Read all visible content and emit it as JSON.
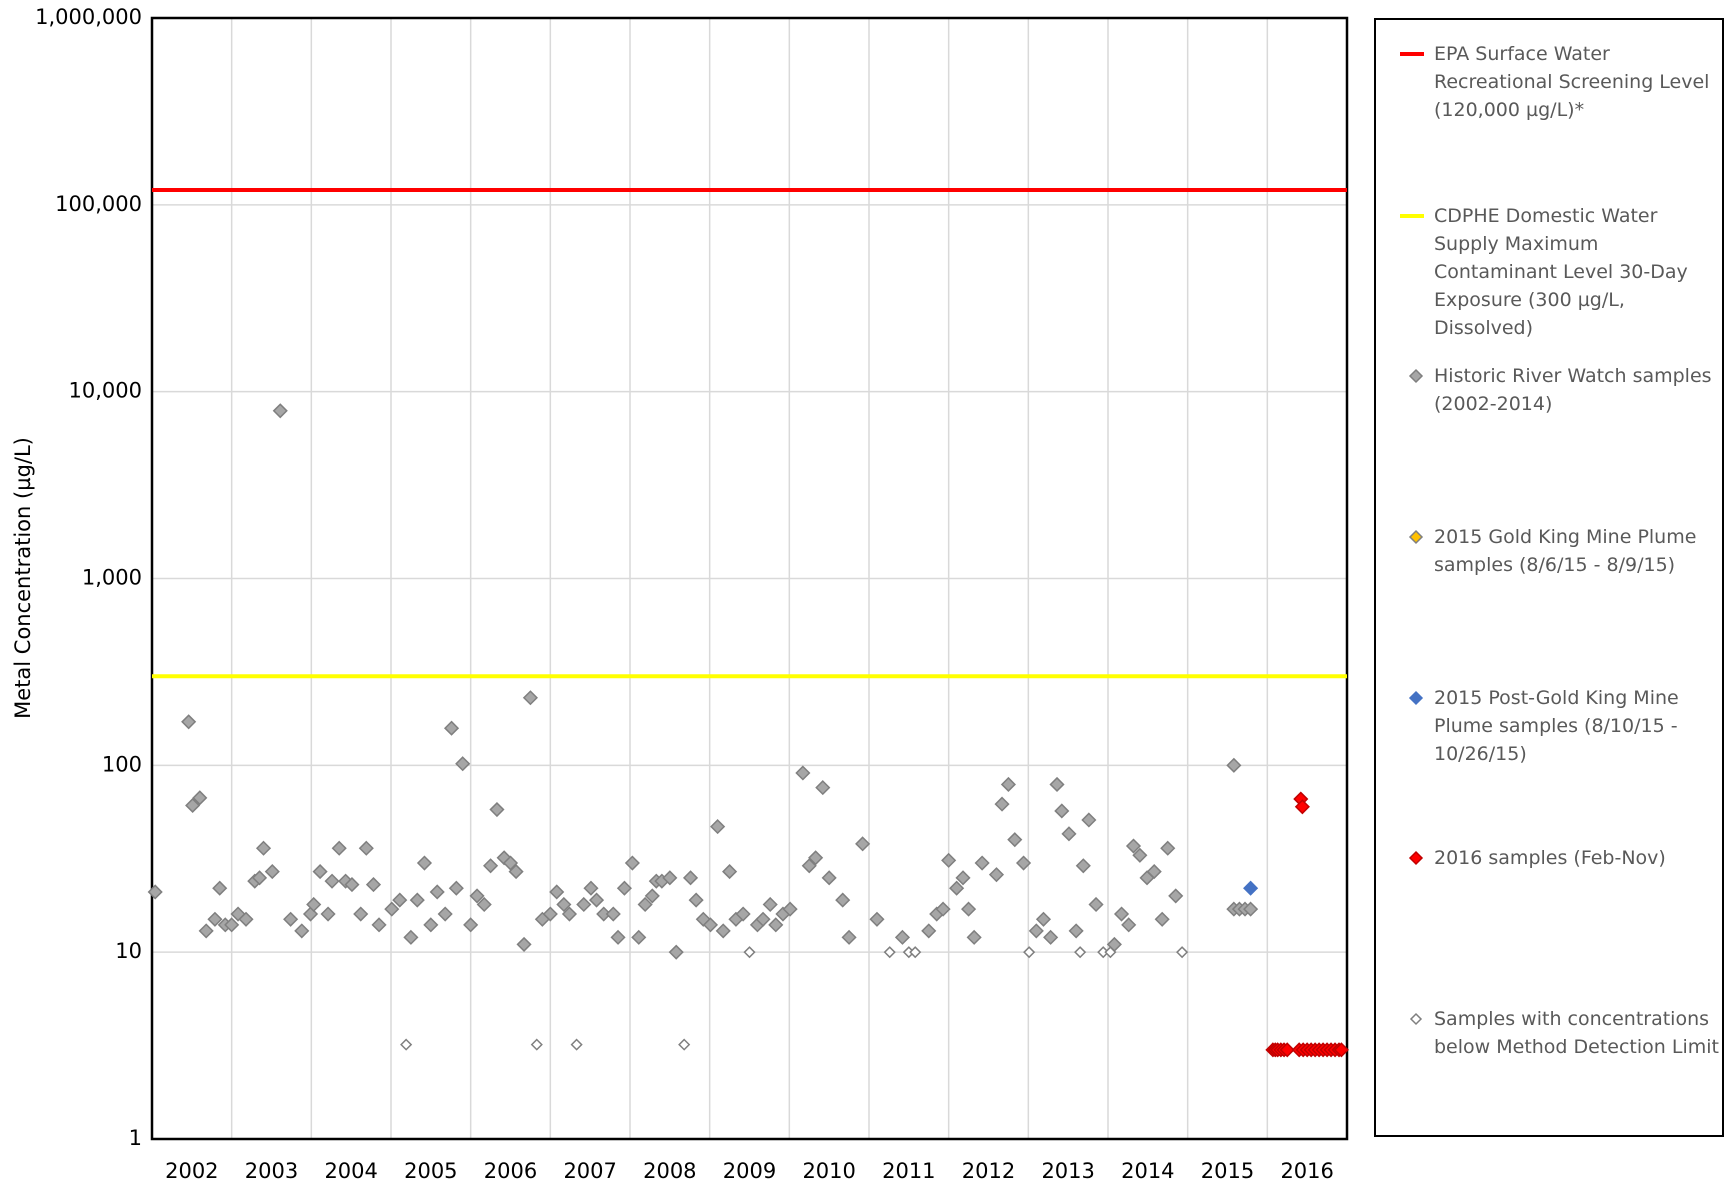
{
  "chart_data": {
    "type": "scatter",
    "y_label": "Metal Concentration (µg/L)",
    "ylog": true,
    "grid": true,
    "ylim": [
      1,
      1000000
    ],
    "yticks": [
      1,
      10,
      100,
      {
        "value": 1000,
        "label": "1,000"
      },
      {
        "value": 10000,
        "label": "10,000"
      },
      {
        "value": 100000,
        "label": "100,000"
      },
      {
        "value": 1000000,
        "label": "1,000,000"
      }
    ],
    "xlim": [
      2002,
      2017
    ],
    "xticks": [
      2002,
      2003,
      2004,
      2005,
      2006,
      2007,
      2008,
      2009,
      2010,
      2011,
      2012,
      2013,
      2014,
      2015,
      2016
    ],
    "legend": "right",
    "series": [
      {
        "name": "EPA Surface Water Recreational Screening Level (120,000 µg/L)*",
        "kind": "hline",
        "color": "#ff0000",
        "y": 120000
      },
      {
        "name": "CDPHE Domestic Water Supply Maximum Contaminant Level 30-Day Exposure (300 µg/L, Dissolved)",
        "kind": "hline",
        "color": "#ffff00",
        "y": 300
      },
      {
        "name": "Historic River Watch samples (2002-2014)",
        "kind": "diamond",
        "color": "#a6a6a6",
        "stroke": "#7f7f7f",
        "x": [
          2002.04,
          2002.46,
          2002.51,
          2002.6,
          2002.68,
          2002.79,
          2002.85,
          2002.92,
          2003.0,
          2003.08,
          2003.18,
          2003.29,
          2003.35,
          2003.4,
          2003.51,
          2003.61,
          2003.74,
          2003.88,
          2003.99,
          2004.03,
          2004.11,
          2004.21,
          2004.26,
          2004.35,
          2004.43,
          2004.51,
          2004.62,
          2004.69,
          2004.78,
          2004.85,
          2005.01,
          2005.11,
          2005.25,
          2005.33,
          2005.42,
          2005.5,
          2005.58,
          2005.68,
          2005.76,
          2005.82,
          2005.9,
          2006.0,
          2006.08,
          2006.17,
          2006.25,
          2006.33,
          2006.42,
          2006.5,
          2006.57,
          2006.67,
          2006.75,
          2006.9,
          2007.0,
          2007.08,
          2007.17,
          2007.24,
          2007.42,
          2007.51,
          2007.58,
          2007.67,
          2007.79,
          2007.85,
          2007.93,
          2008.03,
          2008.11,
          2008.19,
          2008.28,
          2008.33,
          2008.4,
          2008.5,
          2008.58,
          2008.76,
          2008.83,
          2008.92,
          2009.01,
          2009.1,
          2009.17,
          2009.25,
          2009.33,
          2009.42,
          2009.6,
          2009.67,
          2009.76,
          2009.83,
          2009.92,
          2010.01,
          2010.17,
          2010.25,
          2010.33,
          2010.42,
          2010.5,
          2010.67,
          2010.75,
          2010.92,
          2011.1,
          2011.42,
          2011.75,
          2011.85,
          2011.93,
          2012.0,
          2012.1,
          2012.18,
          2012.25,
          2012.32,
          2012.42,
          2012.6,
          2012.67,
          2012.75,
          2012.83,
          2012.94,
          2013.1,
          2013.19,
          2013.28,
          2013.36,
          2013.42,
          2013.51,
          2013.6,
          2013.69,
          2013.76,
          2013.85,
          2014.08,
          2014.17,
          2014.26,
          2014.32,
          2014.4,
          2014.49,
          2014.58,
          2014.68,
          2014.75,
          2014.85,
          2015.58,
          2015.58,
          2015.65,
          2015.72,
          2015.79
        ],
        "values": [
          21,
          171,
          61,
          67,
          13,
          15,
          22,
          14,
          14,
          16,
          15,
          24,
          25,
          36,
          27,
          7900,
          15,
          13,
          16,
          18,
          27,
          16,
          24,
          36,
          24,
          23,
          16,
          36,
          23,
          14,
          17,
          19,
          12,
          19,
          30,
          14,
          21,
          16,
          158,
          22,
          102,
          14,
          20,
          18,
          29,
          58,
          32,
          30,
          27,
          11,
          230,
          15,
          16,
          21,
          18,
          16,
          18,
          22,
          19,
          16,
          16,
          12,
          22,
          30,
          12,
          18,
          20,
          24,
          24,
          25,
          10,
          25,
          19,
          15,
          14,
          47,
          13,
          27,
          15,
          16,
          14,
          15,
          18,
          14,
          16,
          17,
          91,
          29,
          32,
          76,
          25,
          19,
          12,
          38,
          15,
          12,
          13,
          16,
          17,
          31,
          22,
          25,
          17,
          12,
          30,
          26,
          62,
          79,
          40,
          30,
          13,
          15,
          12,
          79,
          57,
          43,
          13,
          29,
          51,
          18,
          11,
          16,
          14,
          37,
          33,
          25,
          27,
          15,
          36,
          20,
          100,
          17,
          17,
          17,
          17
        ]
      },
      {
        "name": "2015 Gold King Mine Plume samples (8/6/15 - 8/9/15)",
        "kind": "diamond",
        "color": "#ffc000",
        "stroke": "#7f7f7f",
        "x": [],
        "values": []
      },
      {
        "name": "2015 Post-Gold King Mine Plume samples (8/10/15 - 10/26/15)",
        "kind": "diamond",
        "color": "#4472c4",
        "stroke": "#4472c4",
        "x": [
          2015.79
        ],
        "values": [
          22
        ]
      },
      {
        "name": "2016 samples (Feb-Nov)",
        "kind": "diamond",
        "color": "#ff0000",
        "stroke": "#c00000",
        "x": [
          2016.42,
          2016.44,
          2016.07,
          2016.1,
          2016.13,
          2016.17,
          2016.21,
          2016.25,
          2016.4,
          2016.45,
          2016.5,
          2016.55,
          2016.6,
          2016.65,
          2016.7,
          2016.75,
          2016.8,
          2016.85,
          2016.9,
          2016.93
        ],
        "values": [
          66,
          60,
          3,
          3,
          3,
          3,
          3,
          3,
          3,
          3,
          3,
          3,
          3,
          3,
          3,
          3,
          3,
          3,
          3,
          3
        ]
      },
      {
        "name": "Samples with concentrations below Method Detection Limit",
        "kind": "open-diamond",
        "color": "#ffffff",
        "stroke": "#7f7f7f",
        "x": [
          2005.19,
          2006.83,
          2007.33,
          2008.68,
          2009.5,
          2011.26,
          2011.5,
          2011.58,
          2013.01,
          2013.65,
          2013.94,
          2014.03,
          2014.93
        ],
        "values": [
          3.2,
          3.2,
          3.2,
          3.2,
          10,
          10,
          10,
          10,
          10,
          10,
          10,
          10,
          10
        ]
      }
    ]
  }
}
